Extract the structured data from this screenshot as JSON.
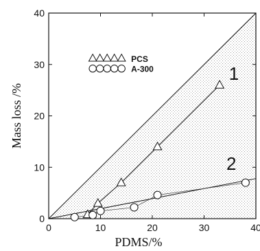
{
  "chart_data": {
    "type": "scatter",
    "xlabel": "PDMS/%",
    "ylabel": "Mass loss /%",
    "xlim": [
      0,
      40
    ],
    "ylim": [
      0,
      40
    ],
    "x_ticks": [
      0,
      10,
      20,
      30,
      40
    ],
    "y_ticks": [
      0,
      10,
      20,
      30,
      40
    ],
    "grid": false,
    "legend_position": "upper-left",
    "diagonal_reference_line": {
      "from": [
        0,
        0
      ],
      "to": [
        40,
        40
      ]
    },
    "series": [
      {
        "name": "PCS",
        "marker": "triangle",
        "curve_label": "1",
        "x": [
          7.5,
          9.5,
          14,
          21,
          33
        ],
        "y": [
          0.8,
          3,
          7,
          14,
          26
        ]
      },
      {
        "name": "A-300",
        "marker": "circle",
        "curve_label": "2",
        "x": [
          5,
          8.5,
          10,
          16.5,
          21,
          38
        ],
        "y": [
          0.3,
          0.7,
          1.5,
          2.2,
          4.6,
          7
        ]
      }
    ],
    "curve_2_line_end": [
      40,
      7.8
    ]
  }
}
